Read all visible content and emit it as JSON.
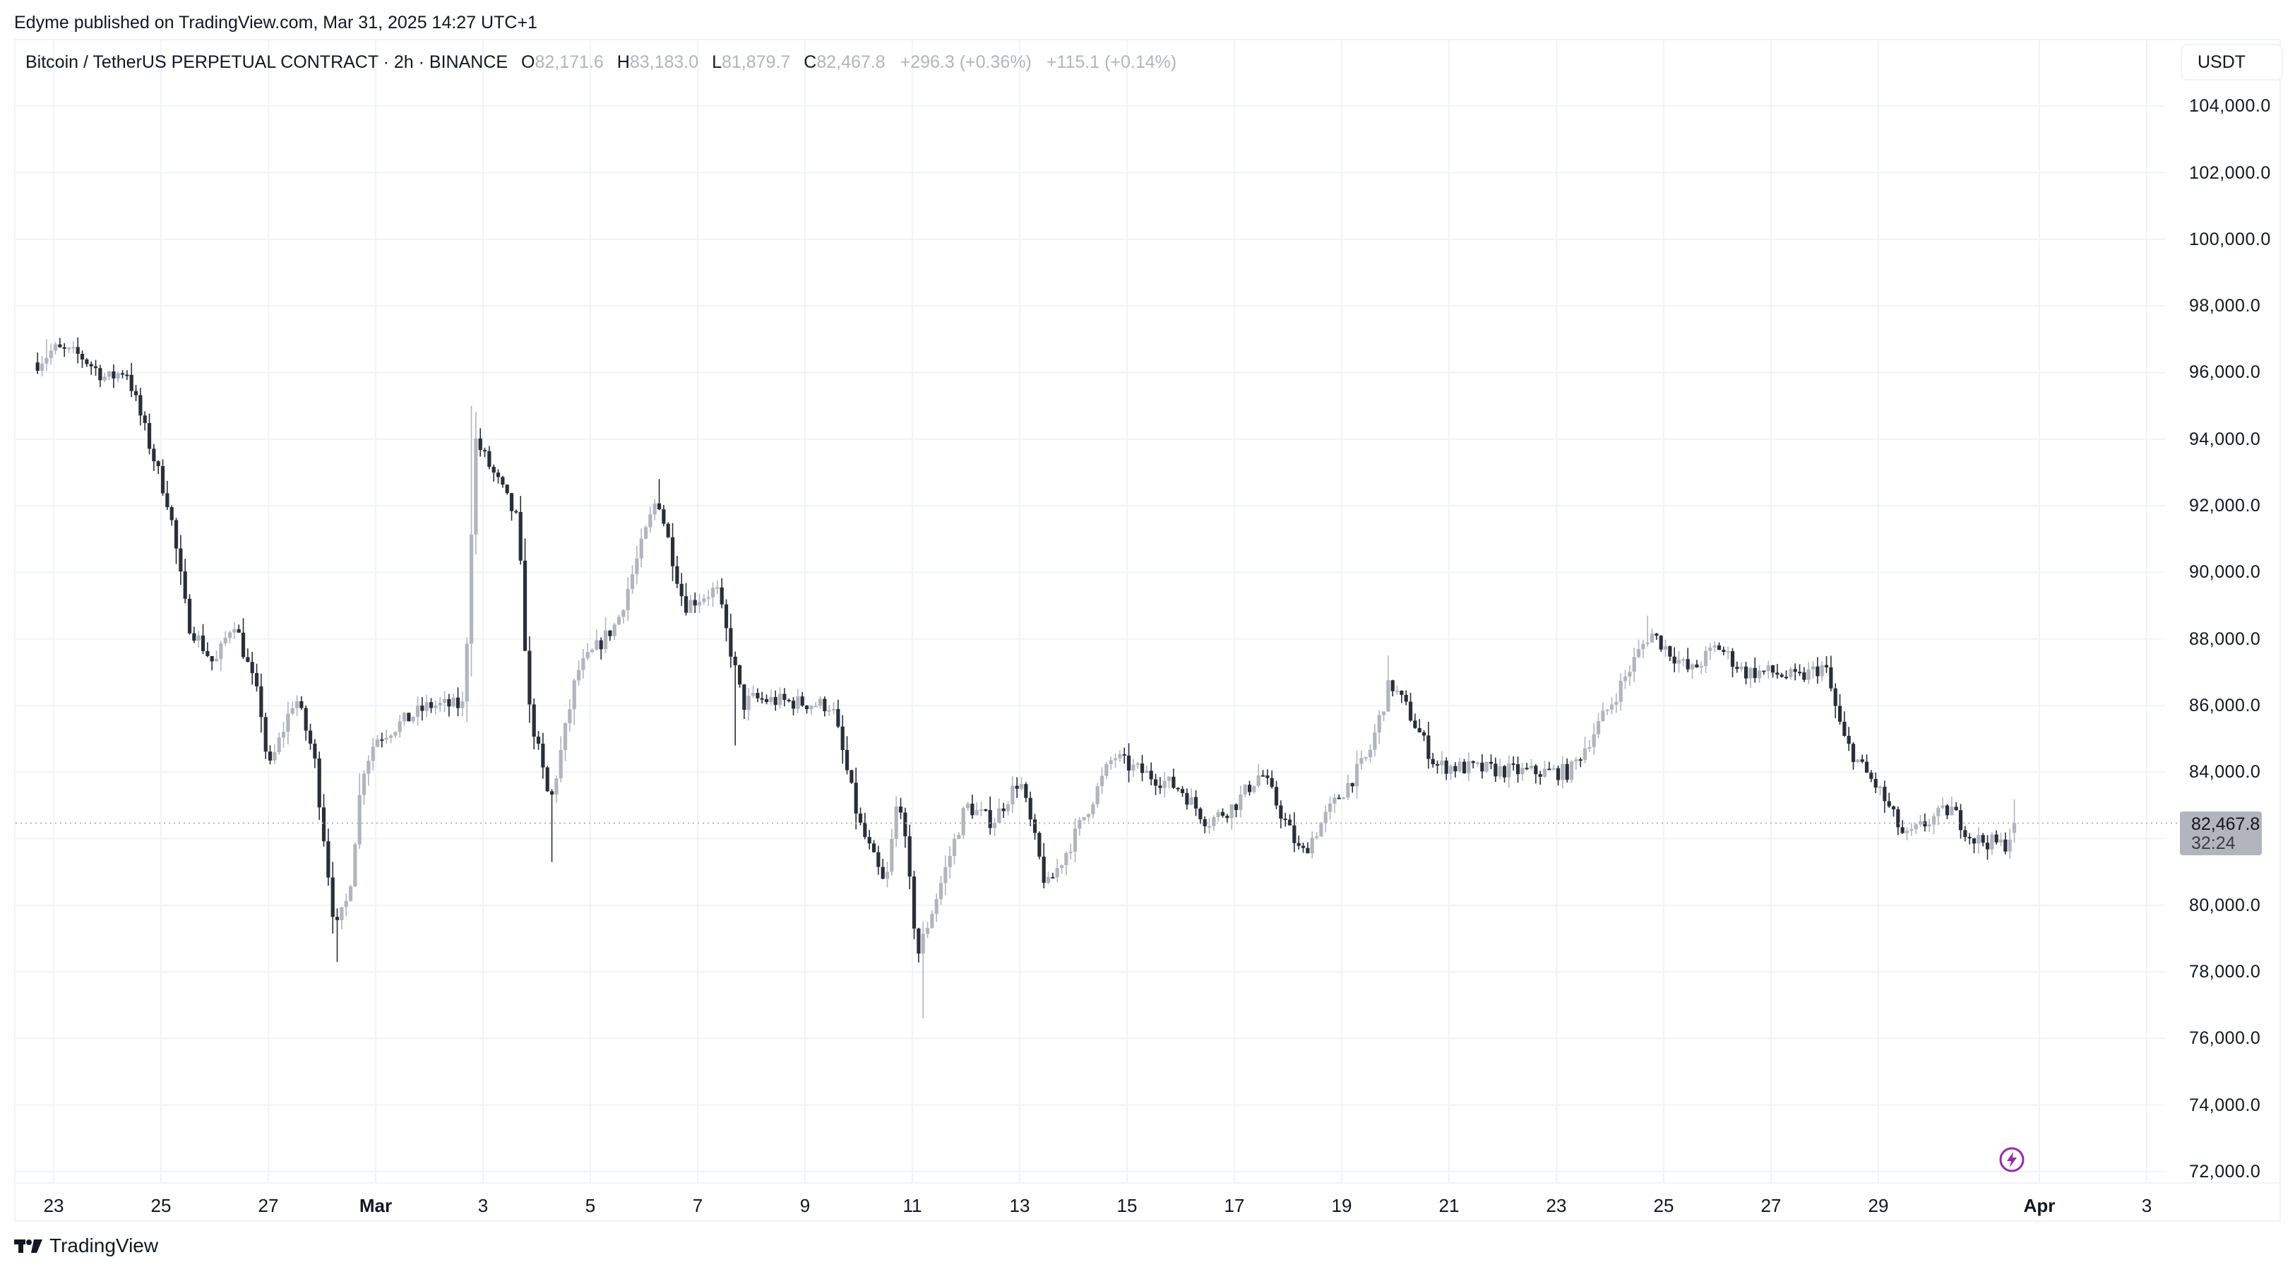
{
  "header": {
    "publish_line": "Edyme published on TradingView.com, Mar 31, 2025 14:27 UTC+1"
  },
  "legend": {
    "symbol": "Bitcoin / TetherUS PERPETUAL CONTRACT · 2h · BINANCE",
    "open_label": "O",
    "open": "82,171.6",
    "high_label": "H",
    "high": "83,183.0",
    "low_label": "L",
    "low": "81,879.7",
    "close_label": "C",
    "close": "82,467.8",
    "change": "+296.3 (+0.36%)",
    "change2": "+115.1 (+0.14%)"
  },
  "price_axis": {
    "currency": "USDT",
    "labels": [
      "104,000.0",
      "102,000.0",
      "100,000.0",
      "98,000.0",
      "96,000.0",
      "94,000.0",
      "92,000.0",
      "90,000.0",
      "88,000.0",
      "86,000.0",
      "84,000.0",
      "82,000.0",
      "80,000.0",
      "78,000.0",
      "76,000.0",
      "74,000.0",
      "72,000.0"
    ],
    "current_price": "82,467.8",
    "countdown": "32:24"
  },
  "time_axis": {
    "labels": [
      {
        "text": "23",
        "day": 1,
        "bold": false
      },
      {
        "text": "25",
        "day": 3,
        "bold": false
      },
      {
        "text": "27",
        "day": 5,
        "bold": false
      },
      {
        "text": "Mar",
        "day": 7,
        "bold": true
      },
      {
        "text": "3",
        "day": 9,
        "bold": false
      },
      {
        "text": "5",
        "day": 11,
        "bold": false
      },
      {
        "text": "7",
        "day": 13,
        "bold": false
      },
      {
        "text": "9",
        "day": 15,
        "bold": false
      },
      {
        "text": "11",
        "day": 17,
        "bold": false
      },
      {
        "text": "13",
        "day": 19,
        "bold": false
      },
      {
        "text": "15",
        "day": 21,
        "bold": false
      },
      {
        "text": "17",
        "day": 23,
        "bold": false
      },
      {
        "text": "19",
        "day": 25,
        "bold": false
      },
      {
        "text": "21",
        "day": 27,
        "bold": false
      },
      {
        "text": "23",
        "day": 29,
        "bold": false
      },
      {
        "text": "25",
        "day": 31,
        "bold": false
      },
      {
        "text": "27",
        "day": 33,
        "bold": false
      },
      {
        "text": "29",
        "day": 35,
        "bold": false
      },
      {
        "text": "Apr",
        "day": 38,
        "bold": true
      },
      {
        "text": "3",
        "day": 40,
        "bold": false
      }
    ]
  },
  "footer": {
    "brand": "TradingView"
  },
  "colors": {
    "up": "#b2b5be",
    "down": "#2a2e39",
    "grid": "#f0f3fa",
    "accent": "#9c27b0",
    "price_tag": "#b2b5be"
  },
  "chart_data": {
    "type": "candlestick",
    "title": "Bitcoin / TetherUS PERPETUAL CONTRACT · 2h · BINANCE",
    "interval": "2h",
    "xlabel": "",
    "ylabel": "USDT",
    "ylim": [
      71000,
      105000
    ],
    "grid": true,
    "last": {
      "open": 82171.6,
      "high": 83183.0,
      "low": 81879.7,
      "close": 82467.8
    },
    "path_note": "keypoints [day offset from Feb 22 00:00, close price]",
    "path": [
      [
        0.7,
        96300
      ],
      [
        1.0,
        96700
      ],
      [
        1.5,
        96500
      ],
      [
        2.0,
        95800
      ],
      [
        2.35,
        96100
      ],
      [
        2.75,
        94000
      ],
      [
        3.15,
        92000
      ],
      [
        3.5,
        88500
      ],
      [
        4.0,
        87200
      ],
      [
        4.35,
        88600
      ],
      [
        4.85,
        86000
      ],
      [
        5.0,
        84000
      ],
      [
        5.5,
        86300
      ],
      [
        5.85,
        84500
      ],
      [
        6.25,
        79200
      ],
      [
        6.5,
        80300
      ],
      [
        6.75,
        84000
      ],
      [
        7.0,
        85000
      ],
      [
        8.0,
        86000
      ],
      [
        8.65,
        86000
      ],
      [
        8.85,
        94000
      ],
      [
        9.35,
        92500
      ],
      [
        9.65,
        91500
      ],
      [
        9.85,
        86000
      ],
      [
        10.25,
        83000
      ],
      [
        10.75,
        87000
      ],
      [
        11.5,
        88500
      ],
      [
        12.25,
        92300
      ],
      [
        12.75,
        89000
      ],
      [
        13.35,
        89500
      ],
      [
        13.85,
        86000
      ],
      [
        14.0,
        86200
      ],
      [
        15.5,
        86000
      ],
      [
        16.0,
        82500
      ],
      [
        16.5,
        80500
      ],
      [
        16.75,
        83500
      ],
      [
        17.1,
        78500
      ],
      [
        17.5,
        80500
      ],
      [
        18.0,
        83000
      ],
      [
        18.5,
        82500
      ],
      [
        19.0,
        83800
      ],
      [
        19.5,
        80500
      ],
      [
        20.0,
        82000
      ],
      [
        20.75,
        84500
      ],
      [
        21.0,
        84200
      ],
      [
        22.0,
        83500
      ],
      [
        22.5,
        82500
      ],
      [
        23.0,
        83000
      ],
      [
        23.5,
        84000
      ],
      [
        24.25,
        81500
      ],
      [
        24.75,
        82800
      ],
      [
        25.5,
        84500
      ],
      [
        25.9,
        86700
      ],
      [
        26.25,
        85800
      ],
      [
        26.75,
        84200
      ],
      [
        27.5,
        84100
      ],
      [
        28.5,
        84000
      ],
      [
        29.25,
        84000
      ],
      [
        30.0,
        86000
      ],
      [
        30.5,
        87500
      ],
      [
        30.75,
        88200
      ],
      [
        31.5,
        87000
      ],
      [
        32.0,
        87800
      ],
      [
        32.5,
        87000
      ],
      [
        33.0,
        87000
      ],
      [
        33.5,
        86800
      ],
      [
        34.0,
        87200
      ],
      [
        34.35,
        85000
      ],
      [
        34.75,
        84000
      ],
      [
        35.0,
        83500
      ],
      [
        35.5,
        82000
      ],
      [
        36.0,
        82600
      ],
      [
        36.35,
        82900
      ],
      [
        36.75,
        82000
      ],
      [
        37.35,
        81800
      ],
      [
        37.58,
        82467.8
      ]
    ],
    "extremes": {
      "high": 95000,
      "low": 76600
    }
  }
}
